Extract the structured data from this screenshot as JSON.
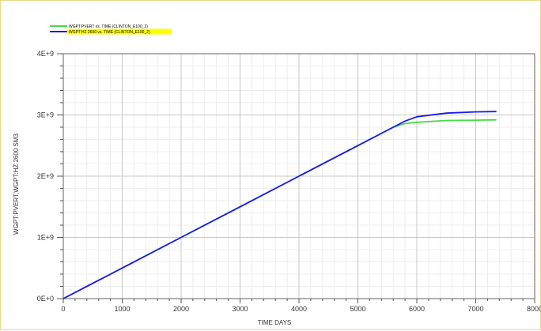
{
  "chart_data": {
    "type": "line",
    "xlabel": "TIME   DAYS",
    "ylabel": "WGPT:PVERT,WGPT:HZ 2600  SM3",
    "xlim": [
      0,
      8000
    ],
    "ylim": [
      0,
      4000000000
    ],
    "x_major_ticks": [
      0,
      1000,
      2000,
      3000,
      4000,
      5000,
      6000,
      7000,
      8000
    ],
    "x_tick_labels": [
      "0",
      "1000",
      "2000",
      "3000",
      "4000",
      "5000",
      "6000",
      "7000",
      "8000"
    ],
    "y_major_ticks": [
      0,
      1000000000,
      2000000000,
      3000000000,
      4000000000
    ],
    "y_tick_labels": [
      "0E+0",
      "1E+9",
      "2E+9",
      "3E+9",
      "4E+9"
    ],
    "grid": true,
    "legend_position": "top-left",
    "series": [
      {
        "name": "WGPT:PVERT vs. TIME (CLINTON_E100_2)",
        "color": "#44dd44",
        "legend_highlight": "",
        "x": [
          0,
          1000,
          2000,
          3000,
          4000,
          5000,
          5600,
          5800,
          6000,
          6500,
          7000,
          7350
        ],
        "y": [
          0,
          500000000,
          1000000000,
          1500000000,
          2000000000,
          2500000000,
          2800000000,
          2860000000,
          2880000000,
          2910000000,
          2915000000,
          2920000000
        ]
      },
      {
        "name": "WGPT:HZ 2600 vs. TIME (CLINTON_E100_2)",
        "color": "#1a1aee",
        "legend_highlight": "#ffff00",
        "x": [
          0,
          1000,
          2000,
          3000,
          4000,
          5000,
          5600,
          5800,
          6000,
          6500,
          7000,
          7350
        ],
        "y": [
          0,
          500000000,
          1000000000,
          1500000000,
          2000000000,
          2500000000,
          2800000000,
          2900000000,
          2970000000,
          3030000000,
          3050000000,
          3055000000
        ]
      }
    ]
  }
}
